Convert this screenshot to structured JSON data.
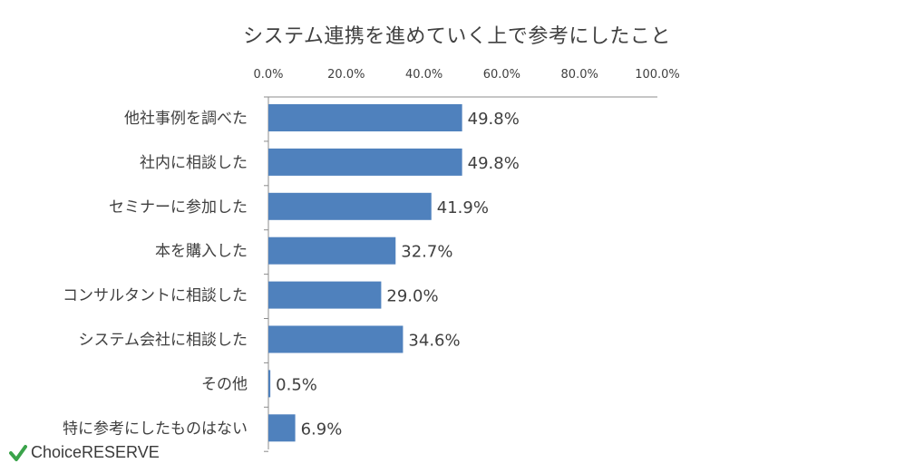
{
  "chart_data": {
    "type": "bar",
    "orientation": "horizontal",
    "title": "システム連携を進めていく上で参考にしたこと",
    "categories": [
      "他社事例を調べた",
      "社内に相談した",
      "セミナーに参加した",
      "本を購入した",
      "コンサルタントに相談した",
      "システム会社に相談した",
      "その他",
      "特に参考にしたものはない"
    ],
    "values": [
      49.8,
      49.8,
      41.9,
      32.7,
      29.0,
      34.6,
      0.5,
      6.9
    ],
    "data_labels": [
      "49.8%",
      "49.8%",
      "41.9%",
      "32.7%",
      "29.0%",
      "34.6%",
      "0.5%",
      "6.9%"
    ],
    "xlim": [
      0,
      100
    ],
    "x_ticks": [
      "0.0%",
      "20.0%",
      "40.0%",
      "60.0%",
      "80.0%",
      "100.0%"
    ],
    "x_axis_position": "top",
    "grid": false,
    "bar_color": "#4f81bd"
  },
  "brand": {
    "logo_text": "ChoiceRESERVE",
    "check_color": "#3aa34a"
  }
}
